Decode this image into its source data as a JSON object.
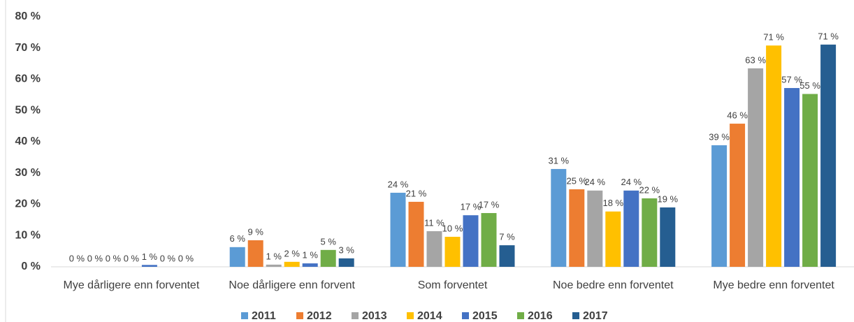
{
  "chart_data": {
    "type": "bar",
    "categories": [
      "Mye dårligere enn forventet",
      "Noe dårligere enn forvent",
      "Som forventet",
      "Noe bedre enn forventet",
      "Mye bedre enn forventet"
    ],
    "series": [
      {
        "name": "2011",
        "color": "#5b9bd5",
        "values": [
          0,
          6.3,
          23.7,
          31.3,
          38.9
        ],
        "value_labels": [
          "0 %",
          "6 %",
          "24 %",
          "31 %",
          "39 %"
        ]
      },
      {
        "name": "2012",
        "color": "#ed7d31",
        "values": [
          0,
          8.5,
          20.8,
          24.8,
          45.8
        ],
        "value_labels": [
          "0 %",
          "9 %",
          "21 %",
          "25 %",
          "46 %"
        ]
      },
      {
        "name": "2013",
        "color": "#a5a5a5",
        "values": [
          0,
          0.7,
          11.4,
          24.4,
          63.5
        ],
        "value_labels": [
          "0 %",
          "1 %",
          "11 %",
          "24 %",
          "63 %"
        ]
      },
      {
        "name": "2014",
        "color": "#ffc000",
        "values": [
          0,
          1.6,
          9.6,
          17.7,
          70.8
        ],
        "value_labels": [
          "0 %",
          "2 %",
          "10 %",
          "18 %",
          "71 %"
        ]
      },
      {
        "name": "2015",
        "color": "#4472c4",
        "values": [
          0.6,
          1.1,
          16.5,
          24.4,
          57.2
        ],
        "value_labels": [
          "1 %",
          "1 %",
          "17 %",
          "24 %",
          "57 %"
        ]
      },
      {
        "name": "2016",
        "color": "#70ad47",
        "values": [
          0,
          5.4,
          17.2,
          21.9,
          55.3
        ],
        "value_labels": [
          "0 %",
          "5 %",
          "17 %",
          "22 %",
          "55 %"
        ]
      },
      {
        "name": "2017",
        "color": "#255e91",
        "values": [
          0,
          2.7,
          6.9,
          19.0,
          71.1
        ],
        "value_labels": [
          "0 %",
          "3 %",
          "7 %",
          "19 %",
          "71 %"
        ]
      }
    ],
    "ylim": [
      0,
      80
    ],
    "yticks": [
      {
        "value": 0,
        "label": "0 %"
      },
      {
        "value": 10,
        "label": "10 %"
      },
      {
        "value": 20,
        "label": "20 %"
      },
      {
        "value": 30,
        "label": "30 %"
      },
      {
        "value": 40,
        "label": "40 %"
      },
      {
        "value": 50,
        "label": "50 %"
      },
      {
        "value": 60,
        "label": "60 %"
      },
      {
        "value": 70,
        "label": "70 %"
      },
      {
        "value": 80,
        "label": "80 %"
      }
    ],
    "grid": false,
    "legend": "bottom"
  }
}
